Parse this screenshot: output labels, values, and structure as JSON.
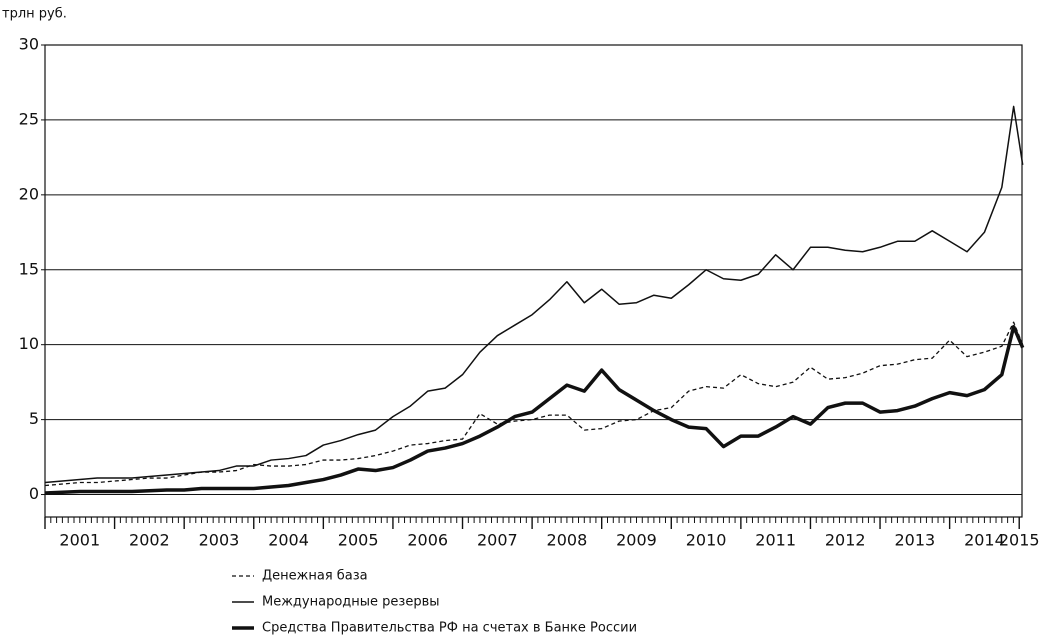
{
  "chart_data": {
    "type": "line",
    "y_label": "трлн руб.",
    "x": [
      2001,
      2001.25,
      2001.5,
      2001.75,
      2002,
      2002.25,
      2002.5,
      2002.75,
      2003,
      2003.25,
      2003.5,
      2003.75,
      2004,
      2004.25,
      2004.5,
      2004.75,
      2005,
      2005.25,
      2005.5,
      2005.75,
      2006,
      2006.25,
      2006.5,
      2006.75,
      2007,
      2007.25,
      2007.5,
      2007.75,
      2008,
      2008.25,
      2008.5,
      2008.75,
      2009,
      2009.25,
      2009.5,
      2009.75,
      2010,
      2010.25,
      2010.5,
      2010.75,
      2011,
      2011.25,
      2011.5,
      2011.75,
      2012,
      2012.25,
      2012.5,
      2012.75,
      2013,
      2013.25,
      2013.5,
      2013.75,
      2014,
      2014.25,
      2014.5,
      2014.75,
      2014.92,
      2015.05
    ],
    "series": [
      {
        "name": "Денежная база",
        "color": "#111111",
        "line_style": "dashed",
        "line_width": 1.3,
        "values": [
          0.6,
          0.7,
          0.8,
          0.8,
          0.9,
          1.0,
          1.1,
          1.1,
          1.3,
          1.5,
          1.5,
          1.6,
          2.0,
          1.9,
          1.9,
          2.0,
          2.3,
          2.3,
          2.4,
          2.6,
          2.9,
          3.3,
          3.4,
          3.6,
          3.7,
          5.4,
          4.7,
          4.9,
          5.0,
          5.3,
          5.3,
          4.3,
          4.4,
          4.9,
          5.0,
          5.6,
          5.8,
          6.9,
          7.2,
          7.1,
          8.0,
          7.4,
          7.2,
          7.5,
          8.5,
          7.7,
          7.8,
          8.1,
          8.6,
          8.7,
          9.0,
          9.1,
          10.3,
          9.2,
          9.5,
          9.9,
          11.5,
          10.0
        ]
      },
      {
        "name": "Международные резервы",
        "color": "#111111",
        "line_style": "solid",
        "line_width": 1.5,
        "values": [
          0.8,
          0.9,
          1.0,
          1.1,
          1.1,
          1.1,
          1.2,
          1.3,
          1.4,
          1.5,
          1.6,
          1.9,
          1.9,
          2.3,
          2.4,
          2.6,
          3.3,
          3.6,
          4.0,
          4.3,
          5.2,
          5.9,
          6.9,
          7.1,
          8.0,
          9.5,
          10.6,
          11.3,
          12.0,
          13.0,
          14.2,
          12.8,
          13.7,
          12.7,
          12.8,
          13.3,
          13.1,
          14.0,
          15.0,
          14.4,
          14.3,
          14.7,
          16.0,
          15.0,
          16.5,
          16.5,
          16.3,
          16.2,
          16.5,
          16.9,
          16.9,
          17.6,
          16.9,
          16.2,
          17.5,
          20.5,
          25.9,
          22.0
        ]
      },
      {
        "name": "Средства Правительства РФ на счетах в Банке России",
        "color": "#111111",
        "line_style": "solid",
        "line_width": 3.5,
        "values": [
          0.1,
          0.15,
          0.2,
          0.2,
          0.2,
          0.2,
          0.25,
          0.3,
          0.3,
          0.4,
          0.4,
          0.4,
          0.4,
          0.5,
          0.6,
          0.8,
          1.0,
          1.3,
          1.7,
          1.6,
          1.8,
          2.3,
          2.9,
          3.1,
          3.4,
          3.9,
          4.5,
          5.2,
          5.5,
          6.4,
          7.3,
          6.9,
          8.3,
          7.0,
          6.3,
          5.6,
          5.0,
          4.5,
          4.4,
          3.2,
          3.9,
          3.9,
          4.5,
          5.2,
          4.7,
          5.8,
          6.1,
          6.1,
          5.5,
          5.6,
          5.9,
          6.4,
          6.8,
          6.6,
          7.0,
          8.0,
          11.2,
          9.8
        ]
      }
    ],
    "xlim": [
      2001,
      2015.04
    ],
    "xticks": [
      {
        "value": 2001.5,
        "label": "2001"
      },
      {
        "value": 2002.5,
        "label": "2002"
      },
      {
        "value": 2003.5,
        "label": "2003"
      },
      {
        "value": 2004.5,
        "label": "2004"
      },
      {
        "value": 2005.5,
        "label": "2005"
      },
      {
        "value": 2006.5,
        "label": "2006"
      },
      {
        "value": 2007.5,
        "label": "2007"
      },
      {
        "value": 2008.5,
        "label": "2008"
      },
      {
        "value": 2009.5,
        "label": "2009"
      },
      {
        "value": 2010.5,
        "label": "2010"
      },
      {
        "value": 2011.5,
        "label": "2011"
      },
      {
        "value": 2012.5,
        "label": "2012"
      },
      {
        "value": 2013.5,
        "label": "2013"
      },
      {
        "value": 2014.5,
        "label": "2014"
      },
      {
        "value": 2015,
        "label": "2015"
      }
    ],
    "ylim": [
      -1.5,
      30
    ],
    "yticks": [
      0,
      5,
      10,
      15,
      20,
      25,
      30
    ],
    "grid": true,
    "legend": "bottom"
  }
}
